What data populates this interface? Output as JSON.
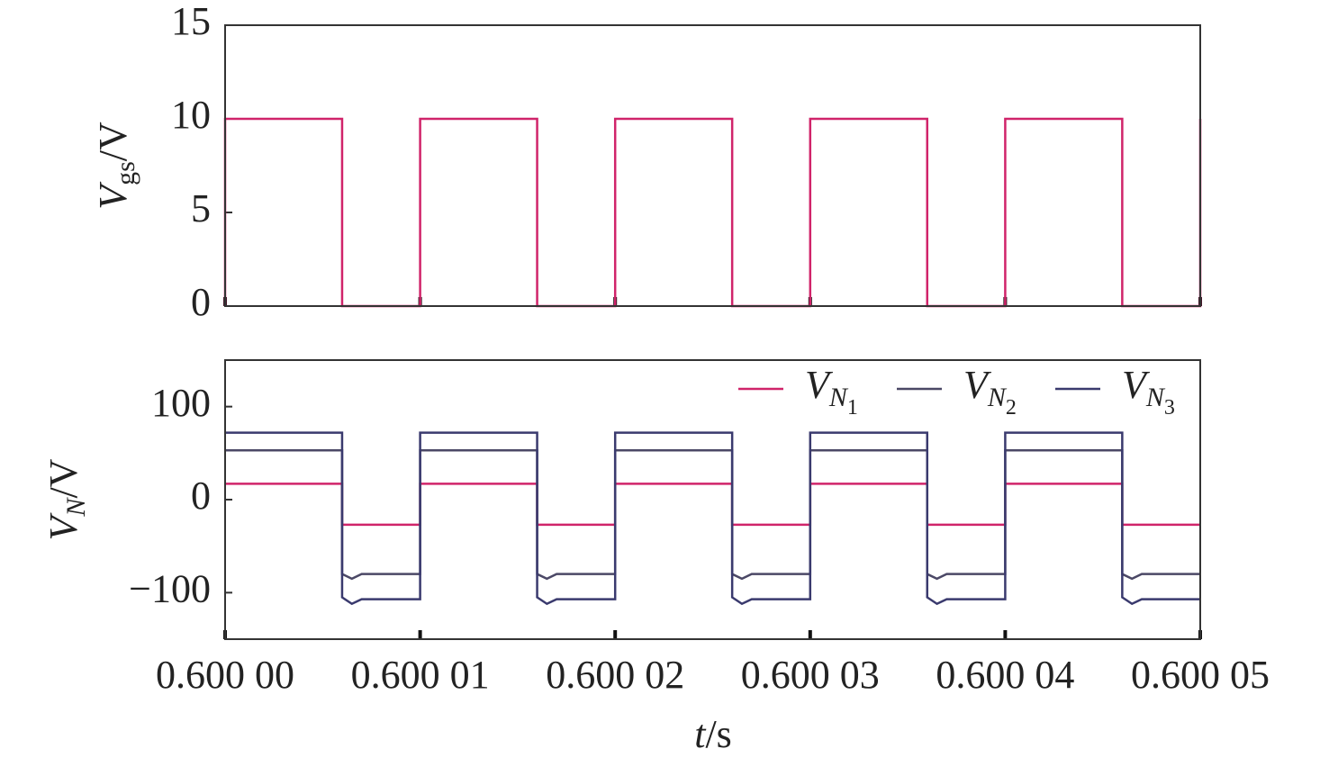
{
  "chart_data": [
    {
      "type": "line",
      "ylabel": "Vgs/V",
      "xlim": [
        0.6,
        0.60005
      ],
      "ylim": [
        0,
        15
      ],
      "yticks": [
        0,
        5,
        10,
        15
      ],
      "x": [
        0.6,
        0.6,
        0.600006,
        0.600006,
        0.60001,
        0.60001,
        0.600016,
        0.600016,
        0.60002,
        0.60002,
        0.600026,
        0.600026,
        0.60003,
        0.60003,
        0.600036,
        0.600036,
        0.60004,
        0.60004,
        0.600046,
        0.600046,
        0.60005,
        0.60005
      ],
      "series": [
        {
          "color": "#d0246a",
          "values": [
            0,
            10,
            10,
            0,
            0,
            10,
            10,
            0,
            0,
            10,
            10,
            0,
            0,
            10,
            10,
            0,
            0,
            10,
            10,
            0,
            0,
            10
          ]
        }
      ]
    },
    {
      "type": "line",
      "ylabel": "VN/V",
      "xlabel": "t/s",
      "xlim": [
        0.6,
        0.60005
      ],
      "ylim": [
        -150,
        150
      ],
      "yticks": [
        {
          "value": -100,
          "label": "−100"
        },
        0,
        100
      ],
      "xticks": [
        {
          "value": 0.6,
          "label": "0.600 00"
        },
        {
          "value": 0.60001,
          "label": "0.600 01"
        },
        {
          "value": 0.60002,
          "label": "0.600 02"
        },
        {
          "value": 0.60003,
          "label": "0.600 03"
        },
        {
          "value": 0.60004,
          "label": "0.600 04"
        },
        {
          "value": 0.60005,
          "label": "0.600 05"
        }
      ],
      "legend": "upper right",
      "x": [
        0.6,
        0.600006,
        0.600006,
        0.6000065,
        0.600007,
        0.60001,
        0.60001,
        0.600016,
        0.600016,
        0.6000165,
        0.600017,
        0.60002,
        0.60002,
        0.600026,
        0.600026,
        0.6000265,
        0.600027,
        0.60003,
        0.60003,
        0.600036,
        0.600036,
        0.6000365,
        0.600037,
        0.60004,
        0.60004,
        0.600046,
        0.600046,
        0.6000465,
        0.600047,
        0.60005
      ],
      "series": [
        {
          "name": "VN1",
          "color": "#d0246a",
          "values": [
            17,
            17,
            -27,
            -27,
            -27,
            -27,
            17,
            17,
            -27,
            -27,
            -27,
            -27,
            17,
            17,
            -27,
            -27,
            -27,
            -27,
            17,
            17,
            -27,
            -27,
            -27,
            -27,
            17,
            17,
            -27,
            -27,
            -27,
            -27
          ]
        },
        {
          "name": "VN2",
          "color": "#4b4866",
          "values": [
            53,
            53,
            -80,
            -85,
            -80,
            -80,
            53,
            53,
            -80,
            -85,
            -80,
            -80,
            53,
            53,
            -80,
            -85,
            -80,
            -80,
            53,
            53,
            -80,
            -85,
            -80,
            -80,
            53,
            53,
            -80,
            -85,
            -80,
            -80
          ]
        },
        {
          "name": "VN3",
          "color": "#3a3a6e",
          "values": [
            72,
            72,
            -105,
            -112,
            -107,
            -107,
            72,
            72,
            -105,
            -112,
            -107,
            -107,
            72,
            72,
            -105,
            -112,
            -107,
            -107,
            72,
            72,
            -105,
            -112,
            -107,
            -107,
            72,
            72,
            -105,
            -112,
            -107,
            -107
          ]
        }
      ]
    }
  ]
}
